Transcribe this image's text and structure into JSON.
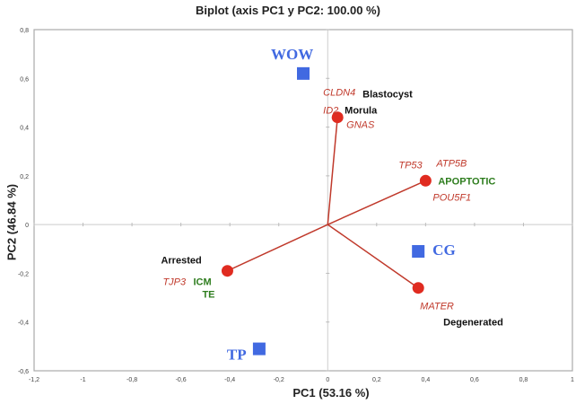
{
  "chart_data": {
    "type": "scatter",
    "title": "Biplot (axis PC1 y PC2: 100.00 %)",
    "xlabel": "PC1 (53.16 %)",
    "ylabel": "PC2 (46.84 %)",
    "xlim": [
      -1.2,
      1
    ],
    "ylim": [
      -0.6,
      0.8
    ],
    "xticks": [
      "-1,2",
      "-1",
      "-0,8",
      "-0,6",
      "-0,4",
      "-0,2",
      "0",
      "0,2",
      "0,4",
      "0,6",
      "0,8",
      "1"
    ],
    "yticks": [
      "-0,6",
      "-0,4",
      "-0,2",
      "0",
      "0,2",
      "0,4",
      "0,6",
      "0,8"
    ],
    "grid": false,
    "observations": {
      "color": "#4169e1",
      "points": [
        {
          "name": "WOW",
          "x": -0.1,
          "y": 0.62
        },
        {
          "name": "CG",
          "x": 0.37,
          "y": -0.11
        },
        {
          "name": "TP",
          "x": -0.28,
          "y": -0.51
        }
      ]
    },
    "variables": {
      "color": "#e02b20",
      "line_color": "#c0392b",
      "points": [
        {
          "x": 0.04,
          "y": 0.44,
          "labels": [
            {
              "text": "CLDN4",
              "kind": "gene"
            },
            {
              "text": "Blastocyst",
              "kind": "stage"
            },
            {
              "text": "ID2",
              "kind": "gene"
            },
            {
              "text": "Morula",
              "kind": "stage"
            },
            {
              "text": "GNAS",
              "kind": "gene"
            }
          ]
        },
        {
          "x": 0.4,
          "y": 0.18,
          "labels": [
            {
              "text": "TP53",
              "kind": "gene"
            },
            {
              "text": "ATP5B",
              "kind": "gene"
            },
            {
              "text": "APOPTOTIC",
              "kind": "cell"
            },
            {
              "text": "POU5F1",
              "kind": "gene"
            }
          ]
        },
        {
          "x": -0.41,
          "y": -0.19,
          "labels": [
            {
              "text": "Arrested",
              "kind": "stage"
            },
            {
              "text": "TJP3",
              "kind": "gene"
            },
            {
              "text": "ICM",
              "kind": "cell"
            },
            {
              "text": "TE",
              "kind": "cell"
            }
          ]
        },
        {
          "x": 0.37,
          "y": -0.26,
          "labels": [
            {
              "text": "MATER",
              "kind": "gene"
            },
            {
              "text": "Degenerated",
              "kind": "stage"
            }
          ]
        }
      ]
    },
    "label_colors": {
      "gene": "#c0392b",
      "stage": "#111111",
      "cell": "#2e7d1e"
    }
  }
}
